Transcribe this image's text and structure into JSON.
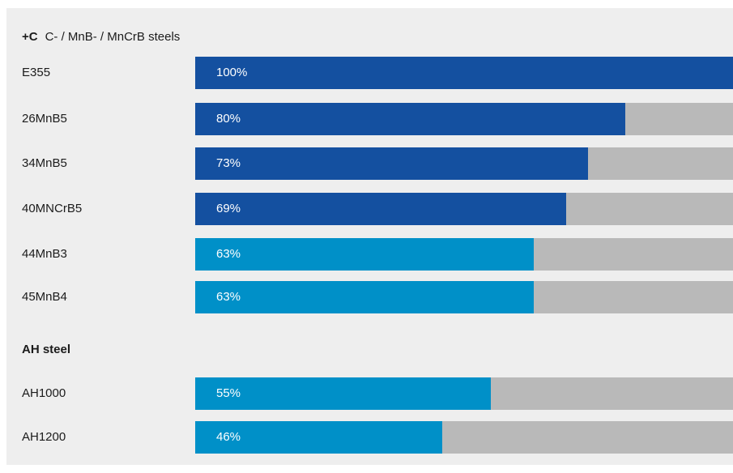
{
  "colors": {
    "panel_bg": "#eeeeee",
    "track": "#b9b9b9",
    "dark_blue": "#1450a0",
    "light_blue": "#0090c8"
  },
  "chart_data": {
    "type": "bar",
    "orientation": "horizontal",
    "xlim": [
      0,
      100
    ],
    "groups": [
      {
        "title_bold": "+C",
        "title_rest": "C- / MnB- / MnCrB steels",
        "bars": [
          {
            "label": "E355",
            "value": 100,
            "value_label": "100%",
            "color": "#1450a0"
          },
          {
            "label": "26MnB5",
            "value": 80,
            "value_label": "80%",
            "color": "#1450a0"
          },
          {
            "label": "34MnB5",
            "value": 73,
            "value_label": "73%",
            "color": "#1450a0"
          },
          {
            "label": "40MNCrB5",
            "value": 69,
            "value_label": "69%",
            "color": "#1450a0"
          },
          {
            "label": "44MnB3",
            "value": 63,
            "value_label": "63%",
            "color": "#0090c8"
          },
          {
            "label": "45MnB4",
            "value": 63,
            "value_label": "63%",
            "color": "#0090c8"
          }
        ]
      },
      {
        "title_bold": "AH steel",
        "title_rest": "",
        "bars": [
          {
            "label": "AH1000",
            "value": 55,
            "value_label": "55%",
            "color": "#0090c8"
          },
          {
            "label": "AH1200",
            "value": 46,
            "value_label": "46%",
            "color": "#0090c8"
          }
        ]
      }
    ]
  }
}
